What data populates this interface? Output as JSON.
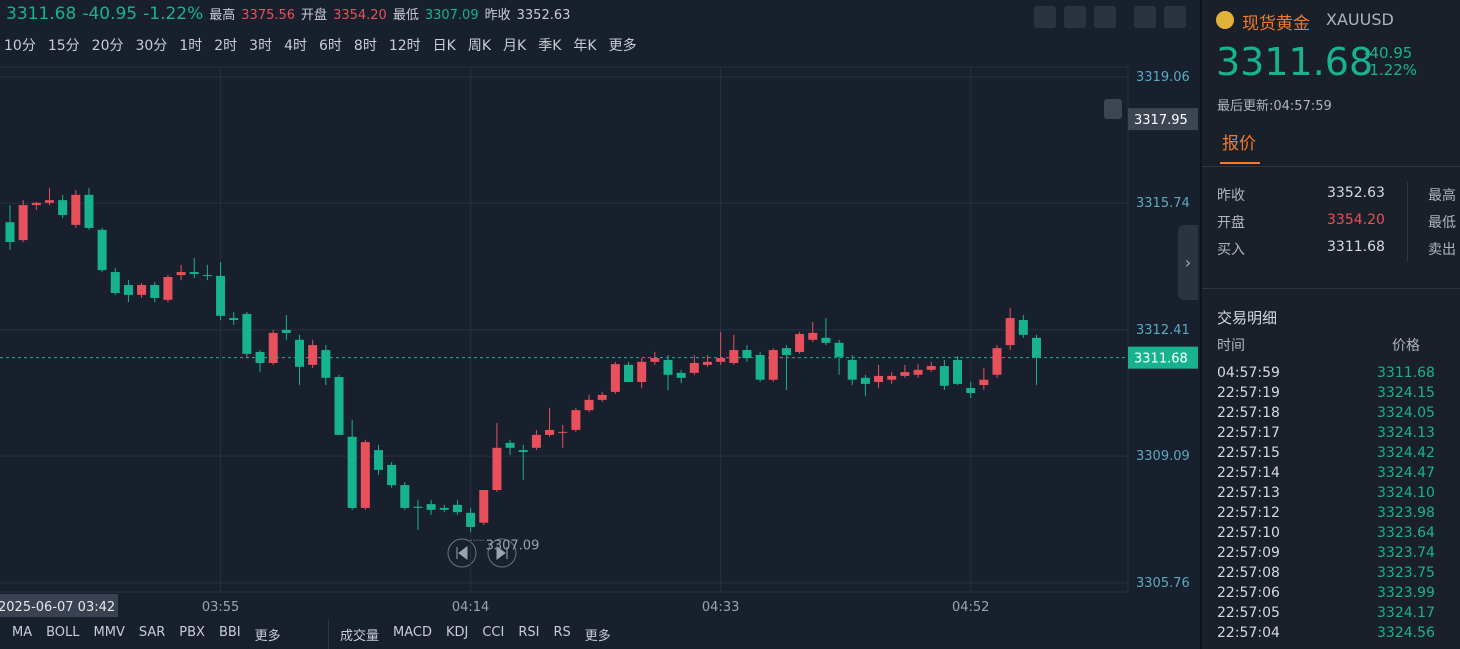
{
  "header": {
    "price": "3311.68",
    "change": "-40.95",
    "percent": "-1.22%",
    "high_label": "最高",
    "high": "3375.56",
    "open_label": "开盘",
    "open": "3354.20",
    "low_label": "最低",
    "low": "3307.09",
    "prev_label": "昨收",
    "prev": "3352.63"
  },
  "periods": [
    "10分",
    "15分",
    "20分",
    "30分",
    "1时",
    "2时",
    "3时",
    "4时",
    "6时",
    "8时",
    "12时",
    "日K",
    "周K",
    "月K",
    "季K",
    "年K",
    "更多"
  ],
  "indicators_main": [
    "MA",
    "BOLL",
    "MMV",
    "SAR",
    "PBX",
    "BBI",
    "更多"
  ],
  "indicators_sub": [
    "成交量",
    "MACD",
    "KDJ",
    "CCI",
    "RSI",
    "RS",
    "更多"
  ],
  "chart_data": {
    "type": "candlestick",
    "up_color": "#e8505b",
    "down_color": "#17b38f",
    "categories": [
      null,
      null,
      null,
      "2025-06-07 03:42",
      null,
      null,
      null,
      null,
      null,
      null,
      null,
      null,
      null,
      null,
      null,
      null,
      "03:55",
      null,
      null,
      null,
      null,
      null,
      null,
      null,
      null,
      null,
      null,
      null,
      null,
      null,
      null,
      null,
      null,
      null,
      null,
      "04:14",
      null,
      null,
      null,
      null,
      null,
      null,
      null,
      null,
      null,
      null,
      null,
      null,
      null,
      null,
      null,
      null,
      null,
      null,
      "04:33",
      null,
      null,
      null,
      null,
      null,
      null,
      null,
      null,
      null,
      null,
      null,
      null,
      null,
      null,
      null,
      null,
      null,
      null,
      "04:52",
      null,
      null,
      null,
      null,
      null
    ],
    "open": [
      3315.24,
      3314.77,
      3315.69,
      3315.75,
      3315.82,
      3315.17,
      3315.96,
      3315.04,
      3313.93,
      3313.59,
      3313.33,
      3313.59,
      3313.2,
      3313.85,
      3313.93,
      3313.85,
      3313.83,
      3312.72,
      3312.83,
      3311.83,
      3311.54,
      3312.41,
      3312.15,
      3311.49,
      3311.88,
      3311.17,
      3309.6,
      3307.73,
      3309.25,
      3308.86,
      3308.33,
      3307.76,
      3307.83,
      3307.73,
      3307.81,
      3307.6,
      3307.34,
      3308.2,
      3309.44,
      3309.25,
      3309.31,
      3309.65,
      3309.73,
      3309.78,
      3310.3,
      3310.57,
      3310.78,
      3311.49,
      3311.04,
      3311.57,
      3311.62,
      3311.28,
      3311.28,
      3311.49,
      3311.57,
      3311.54,
      3311.88,
      3311.75,
      3311.1,
      3311.93,
      3311.83,
      3312.15,
      3312.2,
      3312.07,
      3311.62,
      3311.15,
      3311.04,
      3311.1,
      3311.2,
      3311.23,
      3311.36,
      3311.46,
      3311.62,
      3310.88,
      3310.96,
      3311.23,
      3312.01,
      3312.67,
      3312.2
    ],
    "high": [
      3315.69,
      3315.82,
      3315.77,
      3316.14,
      3315.96,
      3316.09,
      3316.14,
      3315.09,
      3314.04,
      3313.72,
      3313.64,
      3313.67,
      3313.85,
      3314.12,
      3314.3,
      3314.12,
      3314.19,
      3312.88,
      3312.88,
      3311.88,
      3312.41,
      3312.8,
      3312.28,
      3312.15,
      3312.01,
      3311.23,
      3310.04,
      3309.52,
      3309.39,
      3308.94,
      3308.41,
      3307.94,
      3307.94,
      3307.81,
      3307.94,
      3307.73,
      3308.2,
      3309.96,
      3309.52,
      3309.39,
      3309.78,
      3310.36,
      3309.91,
      3310.36,
      3310.7,
      3310.78,
      3311.57,
      3311.57,
      3311.67,
      3311.83,
      3311.75,
      3311.36,
      3311.75,
      3311.75,
      3312.36,
      3312.28,
      3312.01,
      3311.83,
      3311.93,
      3312.01,
      3312.36,
      3312.62,
      3312.72,
      3312.15,
      3311.75,
      3311.23,
      3311.49,
      3311.3,
      3311.49,
      3311.51,
      3311.57,
      3311.62,
      3311.72,
      3311.04,
      3311.41,
      3312.01,
      3312.99,
      3312.8,
      3312.28
    ],
    "low": [
      3314.51,
      3314.72,
      3315.56,
      3315.69,
      3315.35,
      3315.09,
      3315.04,
      3313.93,
      3313.33,
      3313.14,
      3313.25,
      3313.14,
      3313.14,
      3313.72,
      3313.77,
      3313.72,
      3312.67,
      3312.54,
      3311.67,
      3311.3,
      3311.49,
      3312.15,
      3310.96,
      3311.41,
      3310.96,
      3309.65,
      3307.68,
      3307.68,
      3308.6,
      3308.26,
      3307.68,
      3307.15,
      3307.55,
      3307.62,
      3307.55,
      3307.09,
      3307.28,
      3308.15,
      3309.12,
      3308.47,
      3309.25,
      3309.6,
      3309.31,
      3309.73,
      3310.25,
      3310.52,
      3310.73,
      3311.04,
      3310.88,
      3311.49,
      3310.83,
      3311.01,
      3311.23,
      3311.44,
      3311.49,
      3311.49,
      3311.57,
      3311.04,
      3311.04,
      3310.83,
      3311.78,
      3312.09,
      3312.01,
      3311.23,
      3310.96,
      3310.67,
      3310.88,
      3310.99,
      3311.15,
      3311.15,
      3311.3,
      3310.83,
      3310.96,
      3310.62,
      3310.83,
      3311.15,
      3311.88,
      3312.2,
      3310.96
    ],
    "close": [
      3314.72,
      3315.69,
      3315.75,
      3315.82,
      3315.43,
      3315.96,
      3315.09,
      3313.98,
      3313.38,
      3313.33,
      3313.59,
      3313.25,
      3313.8,
      3313.93,
      3313.88,
      3313.83,
      3312.78,
      3312.67,
      3311.78,
      3311.54,
      3312.33,
      3312.33,
      3311.44,
      3312.01,
      3311.15,
      3309.65,
      3307.73,
      3309.46,
      3308.73,
      3308.33,
      3307.73,
      3307.73,
      3307.68,
      3307.68,
      3307.62,
      3307.23,
      3308.2,
      3309.31,
      3309.31,
      3309.2,
      3309.65,
      3309.78,
      3309.73,
      3310.3,
      3310.57,
      3310.7,
      3311.51,
      3311.04,
      3311.57,
      3311.67,
      3311.23,
      3311.15,
      3311.54,
      3311.57,
      3311.67,
      3311.88,
      3311.67,
      3311.1,
      3311.88,
      3311.75,
      3312.3,
      3312.33,
      3312.07,
      3311.7,
      3311.1,
      3310.99,
      3311.2,
      3311.2,
      3311.3,
      3311.36,
      3311.46,
      3310.94,
      3310.99,
      3310.75,
      3311.1,
      3311.93,
      3312.72,
      3312.28,
      3311.68
    ],
    "ylim": [
      3305.52,
      3319.32
    ],
    "yticks": [
      3305.76,
      3309.09,
      3312.41,
      3315.74,
      3319.06
    ],
    "grid": true,
    "last_price": 3311.68,
    "crosshair_price": 3317.95,
    "low_marker": 3307.09
  },
  "panel": {
    "name": "现货黄金",
    "code": "XAUUSD",
    "price": "3311.68",
    "change": "-40.95",
    "percent": "-1.22%",
    "updated": "最后更新:04:57:59",
    "tab": "报价",
    "quote": [
      [
        "昨收",
        "3352.63",
        "最高"
      ],
      [
        "开盘",
        "3354.20",
        "最低"
      ],
      [
        "买入",
        "3311.68",
        "卖出"
      ]
    ],
    "trades_title": "交易明细",
    "trades_header": [
      "时间",
      "价格"
    ],
    "trades": [
      [
        "04:57:59",
        "3311.68"
      ],
      [
        "22:57:19",
        "3324.15"
      ],
      [
        "22:57:18",
        "3324.05"
      ],
      [
        "22:57:17",
        "3324.13"
      ],
      [
        "22:57:15",
        "3324.42"
      ],
      [
        "22:57:14",
        "3324.47"
      ],
      [
        "22:57:13",
        "3324.10"
      ],
      [
        "22:57:12",
        "3323.98"
      ],
      [
        "22:57:10",
        "3323.64"
      ],
      [
        "22:57:09",
        "3323.74"
      ],
      [
        "22:57:08",
        "3323.75"
      ],
      [
        "22:57:06",
        "3323.99"
      ],
      [
        "22:57:05",
        "3324.17"
      ],
      [
        "22:57:04",
        "3324.56"
      ]
    ]
  }
}
